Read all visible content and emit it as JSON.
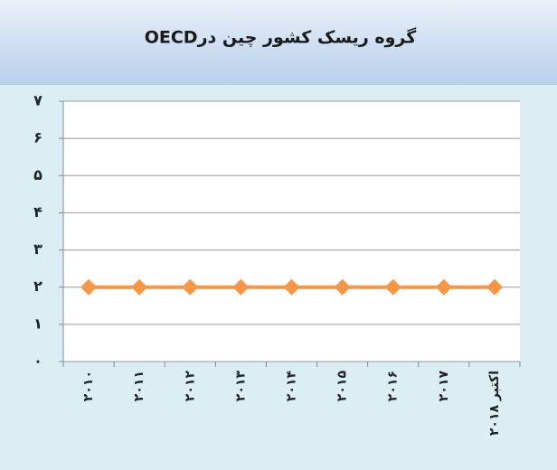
{
  "chart_data": {
    "type": "line",
    "title": "گروه ریسک کشور چین درOECD",
    "categories": [
      "۲۰۱۰",
      "۲۰۱۱",
      "۲۰۱۲",
      "۲۰۱۳",
      "۲۰۱۴",
      "۲۰۱۵",
      "۲۰۱۶",
      "۲۰۱۷",
      "اکتبر ۲۰۱۸"
    ],
    "values": [
      2,
      2,
      2,
      2,
      2,
      2,
      2,
      2,
      2
    ],
    "color": "#f79646",
    "ylim": [
      0,
      7
    ],
    "yticks": [
      {
        "value": 0,
        "label": "۰"
      },
      {
        "value": 1,
        "label": "۱"
      },
      {
        "value": 2,
        "label": "۲"
      },
      {
        "value": 3,
        "label": "۳"
      },
      {
        "value": 4,
        "label": "۴"
      },
      {
        "value": 5,
        "label": "۵"
      },
      {
        "value": 6,
        "label": "۶"
      },
      {
        "value": 7,
        "label": "۷"
      }
    ],
    "grid": true
  }
}
